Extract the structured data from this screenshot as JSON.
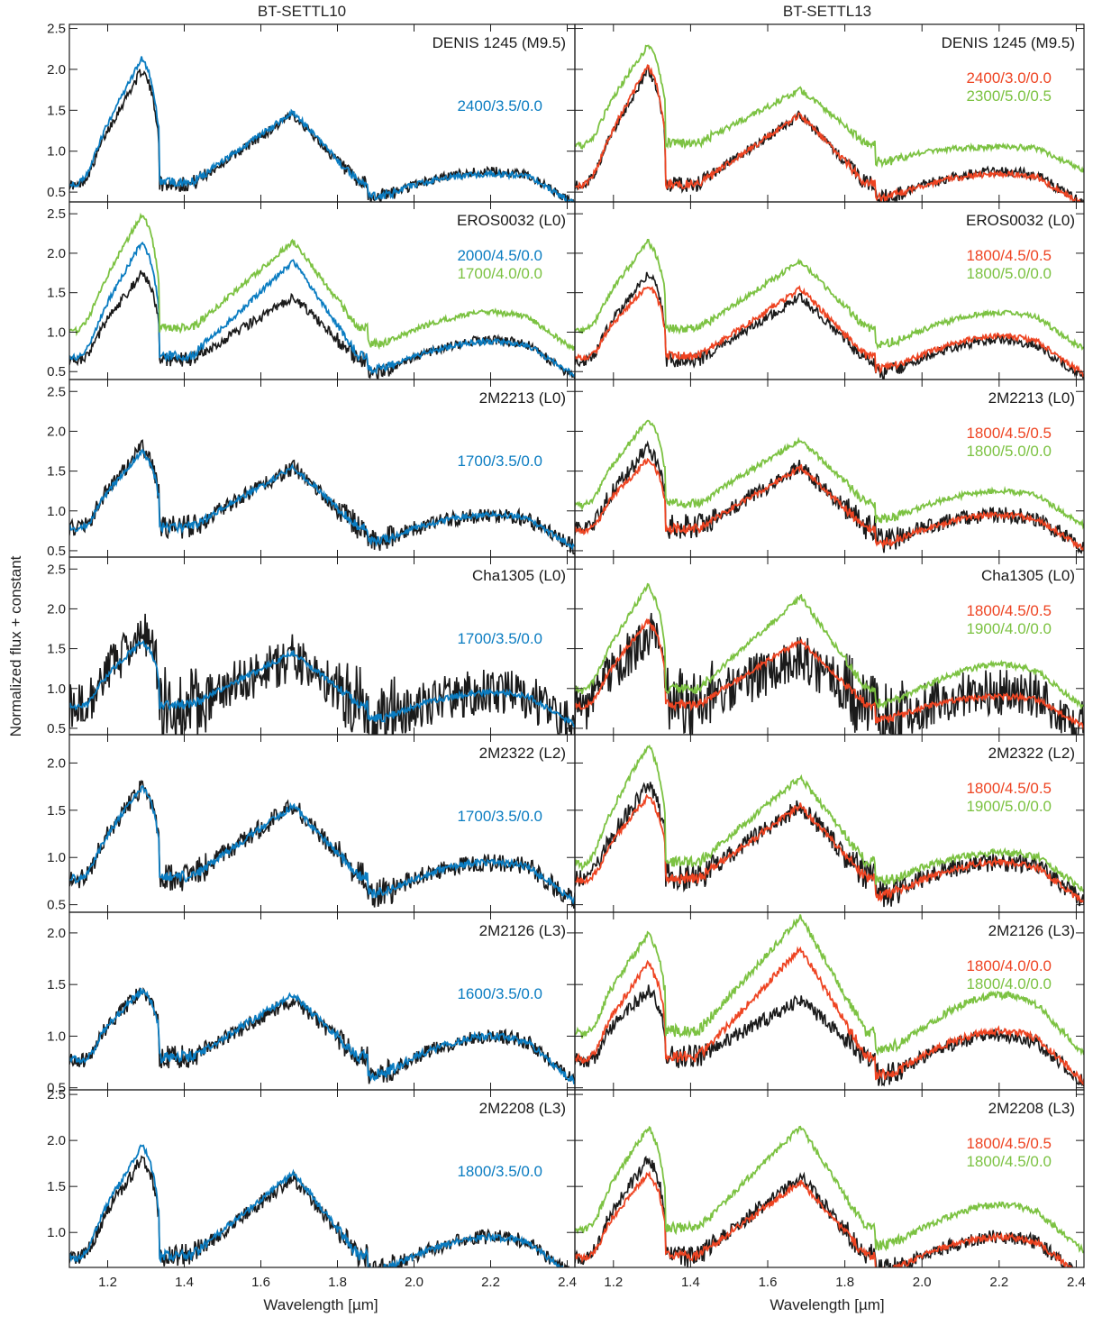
{
  "figure": {
    "column_titles": [
      "BT-SETTL10",
      "BT-SETTL13"
    ],
    "xlabel": "Wavelength [µm]",
    "ylabel": "Normalized flux + constant"
  },
  "colors": {
    "observed": "#1a1a1a",
    "blue": "#0a7cc1",
    "red": "#ee4422",
    "green": "#7cc242"
  },
  "chart_data": {
    "type": "line",
    "xlim": [
      1.1,
      2.42
    ],
    "xticks": [
      1.2,
      1.4,
      1.6,
      1.8,
      2.0,
      2.2,
      2.4
    ],
    "grid": false,
    "panels": [
      {
        "star": "DENIS 1245 (M9.5)",
        "ylim": [
          0.38,
          2.55
        ],
        "yticks": [
          0.5,
          1.0,
          1.5,
          2.0,
          2.5
        ],
        "noise": 0.06,
        "obs": {
          "J": 2.0,
          "H": 1.45,
          "K": 0.75,
          "base": 0.6
        },
        "left": [
          {
            "label": "2400/3.5/0.0",
            "color": "blue",
            "J": 2.15,
            "H": 1.48,
            "K": 0.72,
            "base": 0.62
          }
        ],
        "right": [
          {
            "label": "2400/3.0/0.0",
            "color": "red",
            "J": 2.05,
            "H": 1.45,
            "K": 0.72,
            "base": 0.6
          },
          {
            "label": "2300/5.0/0.5",
            "color": "green",
            "J": 2.3,
            "H": 1.75,
            "K": 1.05,
            "base": 1.1
          }
        ]
      },
      {
        "star": "EROS0032 (L0)",
        "ylim": [
          0.4,
          2.65
        ],
        "yticks": [
          0.5,
          1.0,
          1.5,
          2.0,
          2.5
        ],
        "noise": 0.06,
        "obs": {
          "J": 1.75,
          "H": 1.45,
          "K": 0.9,
          "base": 0.65
        },
        "left": [
          {
            "label": "2000/4.5/0.0",
            "color": "blue",
            "J": 2.15,
            "H": 1.9,
            "K": 0.88,
            "base": 0.7
          },
          {
            "label": "1700/4.0/0.0",
            "color": "green",
            "J": 2.5,
            "H": 2.15,
            "K": 1.25,
            "base": 1.05
          }
        ],
        "right": [
          {
            "label": "1800/4.5/0.5",
            "color": "red",
            "J": 1.6,
            "H": 1.55,
            "K": 0.95,
            "base": 0.7
          },
          {
            "label": "1800/5.0/0.0",
            "color": "green",
            "J": 2.15,
            "H": 1.9,
            "K": 1.25,
            "base": 1.05
          }
        ]
      },
      {
        "star": "2M2213 (L0)",
        "ylim": [
          0.42,
          2.65
        ],
        "yticks": [
          0.5,
          1.0,
          1.5,
          2.0,
          2.5
        ],
        "noise": 0.1,
        "obs": {
          "J": 1.8,
          "H": 1.55,
          "K": 0.95,
          "base": 0.8
        },
        "left": [
          {
            "label": "1700/3.5/0.0",
            "color": "blue",
            "J": 1.75,
            "H": 1.55,
            "K": 0.95,
            "base": 0.8
          }
        ],
        "right": [
          {
            "label": "1800/4.5/0.5",
            "color": "red",
            "J": 1.65,
            "H": 1.55,
            "K": 0.95,
            "base": 0.78
          },
          {
            "label": "1800/5.0/0.0",
            "color": "green",
            "J": 2.15,
            "H": 1.9,
            "K": 1.25,
            "base": 1.1
          }
        ]
      },
      {
        "star": "Cha1305 (L0)",
        "ylim": [
          0.42,
          2.65
        ],
        "yticks": [
          0.5,
          1.0,
          1.5,
          2.0,
          2.5
        ],
        "noise": 0.3,
        "obs": {
          "J": 1.7,
          "H": 1.4,
          "K": 0.95,
          "base": 0.8
        },
        "left": [
          {
            "label": "1700/3.5/0.0",
            "color": "blue",
            "J": 1.6,
            "H": 1.45,
            "K": 0.95,
            "base": 0.8
          }
        ],
        "right": [
          {
            "label": "1800/4.5/0.5",
            "color": "red",
            "J": 1.85,
            "H": 1.6,
            "K": 0.9,
            "base": 0.8
          },
          {
            "label": "1900/4.0/0.0",
            "color": "green",
            "J": 2.3,
            "H": 2.15,
            "K": 1.3,
            "base": 1.0
          }
        ]
      },
      {
        "star": "2M2322 (L2)",
        "ylim": [
          0.42,
          2.3
        ],
        "yticks": [
          0.5,
          1.0,
          1.5,
          2.0
        ],
        "noise": 0.1,
        "obs": {
          "J": 1.75,
          "H": 1.55,
          "K": 0.95,
          "base": 0.8
        },
        "left": [
          {
            "label": "1700/3.5/0.0",
            "color": "blue",
            "J": 1.75,
            "H": 1.55,
            "K": 0.95,
            "base": 0.8
          }
        ],
        "right": [
          {
            "label": "1800/4.5/0.5",
            "color": "red",
            "J": 1.65,
            "H": 1.55,
            "K": 0.95,
            "base": 0.78
          },
          {
            "label": "1900/5.0/0.0",
            "color": "green",
            "J": 2.2,
            "H": 1.85,
            "K": 1.05,
            "base": 0.95
          }
        ]
      },
      {
        "star": "2M2126 (L3)",
        "ylim": [
          0.48,
          2.2
        ],
        "yticks": [
          0.5,
          1.0,
          1.5,
          2.0
        ],
        "noise": 0.07,
        "obs": {
          "J": 1.45,
          "H": 1.35,
          "K": 1.0,
          "base": 0.8
        },
        "left": [
          {
            "label": "1600/3.5/0.0",
            "color": "blue",
            "J": 1.45,
            "H": 1.4,
            "K": 1.0,
            "base": 0.8
          }
        ],
        "right": [
          {
            "label": "1800/4.0/0.0",
            "color": "red",
            "J": 1.7,
            "H": 1.85,
            "K": 1.05,
            "base": 0.8
          },
          {
            "label": "1800/4.0/0.0",
            "color": "green",
            "J": 2.0,
            "H": 2.15,
            "K": 1.4,
            "base": 1.05
          }
        ]
      },
      {
        "star": "2M2208 (L3)",
        "ylim": [
          0.62,
          2.55
        ],
        "yticks": [
          1.0,
          1.5,
          2.0,
          2.5
        ],
        "noise": 0.08,
        "obs": {
          "J": 1.8,
          "H": 1.6,
          "K": 0.95,
          "base": 0.75
        },
        "left": [
          {
            "label": "1800/3.5/0.0",
            "color": "blue",
            "J": 1.95,
            "H": 1.65,
            "K": 0.95,
            "base": 0.75
          }
        ],
        "right": [
          {
            "label": "1800/4.5/0.5",
            "color": "red",
            "J": 1.65,
            "H": 1.55,
            "K": 0.95,
            "base": 0.75
          },
          {
            "label": "1800/4.5/0.0",
            "color": "green",
            "J": 2.15,
            "H": 2.15,
            "K": 1.3,
            "base": 1.05
          }
        ]
      }
    ]
  }
}
